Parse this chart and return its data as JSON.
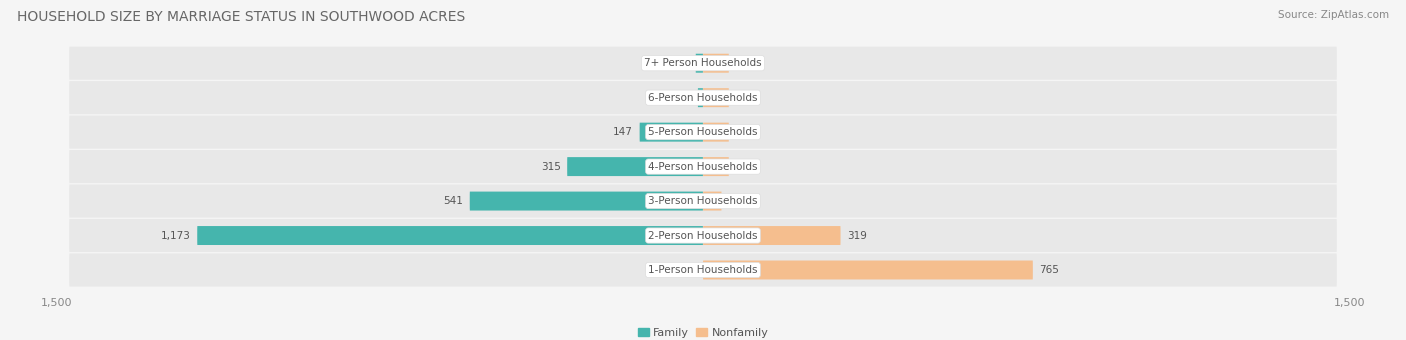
{
  "title": "HOUSEHOLD SIZE BY MARRIAGE STATUS IN SOUTHWOOD ACRES",
  "source": "Source: ZipAtlas.com",
  "categories": [
    "7+ Person Households",
    "6-Person Households",
    "5-Person Households",
    "4-Person Households",
    "3-Person Households",
    "2-Person Households",
    "1-Person Households"
  ],
  "family_values": [
    17,
    12,
    147,
    315,
    541,
    1173,
    0
  ],
  "nonfamily_values": [
    0,
    0,
    0,
    0,
    43,
    319,
    765
  ],
  "family_color": "#45B5AD",
  "nonfamily_color": "#F5BE8E",
  "axis_limit": 1500,
  "row_bg_color": "#e8e8e8",
  "page_bg_color": "#f5f5f5",
  "title_fontsize": 10,
  "source_fontsize": 7.5,
  "label_fontsize": 7.5,
  "tick_fontsize": 8,
  "zero_bar_width": 60
}
